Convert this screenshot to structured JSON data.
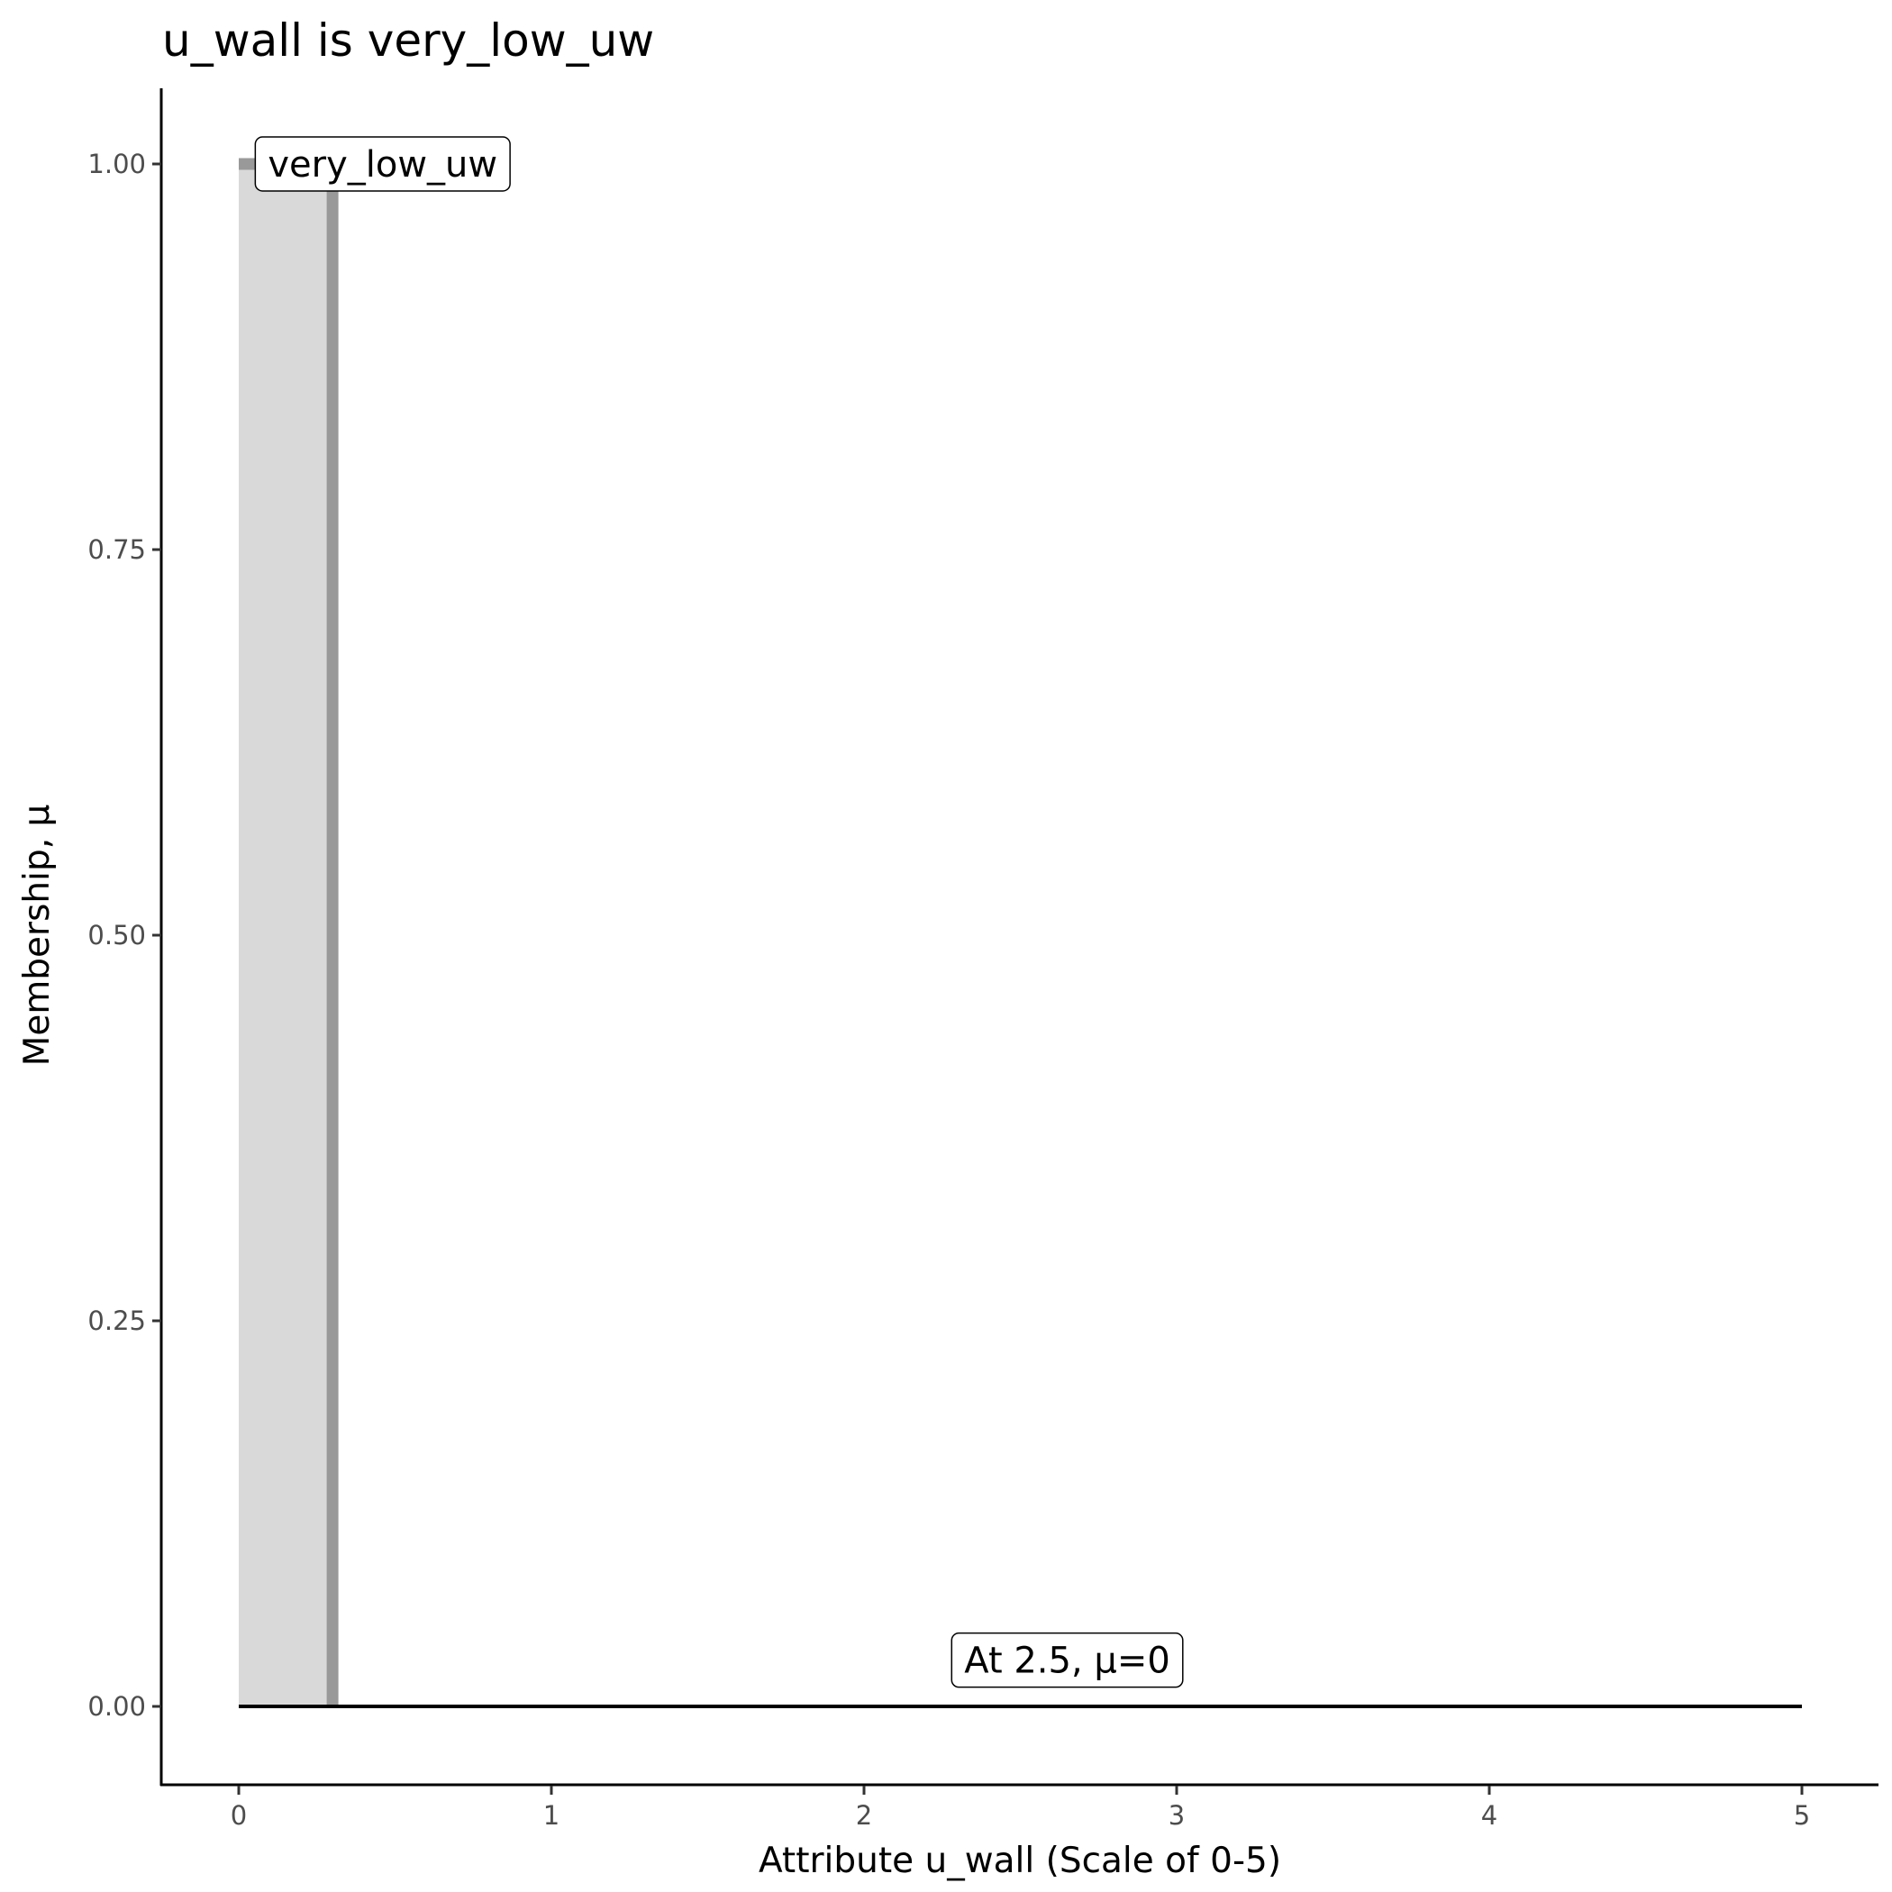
{
  "chart_data": {
    "type": "area",
    "title": "u_wall is very_low_uw",
    "xlabel": "Attribute u_wall (Scale of 0-5)",
    "ylabel": "Membership, μ",
    "xlim": [
      -0.25,
      5.25
    ],
    "ylim": [
      -0.05,
      1.05
    ],
    "x_ticks": [
      0,
      1,
      2,
      3,
      4,
      5
    ],
    "x_tick_labels": [
      "0",
      "1",
      "2",
      "3",
      "4",
      "5"
    ],
    "y_ticks": [
      0,
      0.25,
      0.5,
      0.75,
      1
    ],
    "y_tick_labels": [
      "0.00",
      "0.25",
      "0.50",
      "0.75",
      "1.00"
    ],
    "grid": false,
    "membership_function": {
      "name": "very_low_uw",
      "points": [
        [
          0,
          1
        ],
        [
          0.3,
          1
        ],
        [
          0.3,
          0
        ]
      ],
      "fill_color": "#d9d9d9",
      "line_color": "#999999"
    },
    "baseline": {
      "x": [
        0,
        5
      ],
      "y": 0,
      "color": "#000000"
    },
    "annotations": [
      {
        "text": "very_low_uw",
        "x": 0.05,
        "y": 1.0,
        "anchor": "left"
      },
      {
        "text": "At 2.5, μ=0",
        "x": 2.65,
        "y": 0.03,
        "anchor": "center"
      }
    ]
  }
}
